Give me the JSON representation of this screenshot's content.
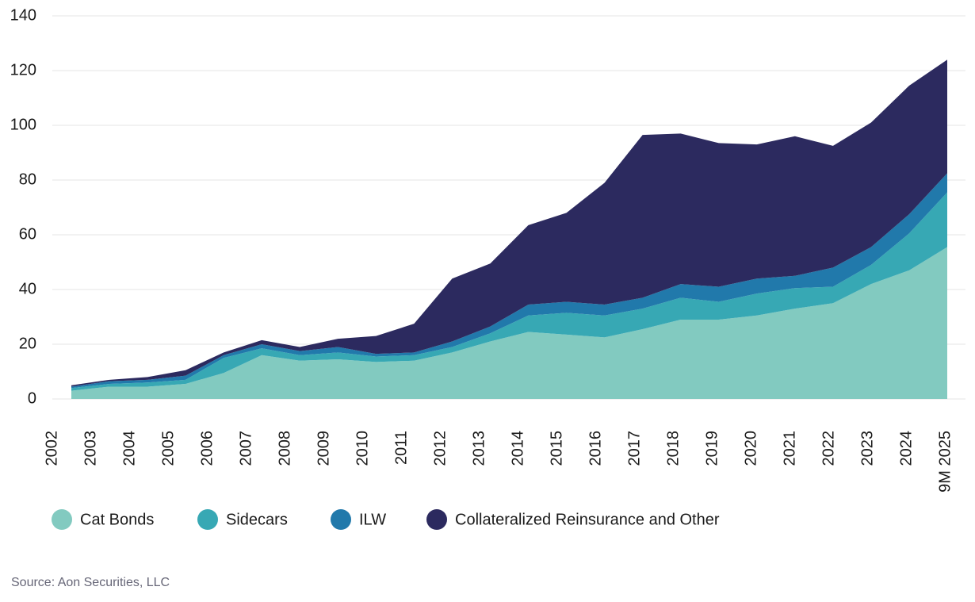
{
  "chart_data": {
    "type": "stacked_area",
    "categories": [
      "2002",
      "2003",
      "2004",
      "2005",
      "2006",
      "2007",
      "2008",
      "2009",
      "2010",
      "2011",
      "2012",
      "2013",
      "2014",
      "2015",
      "2016",
      "2017",
      "2018",
      "2019",
      "2020",
      "2021",
      "2022",
      "2023",
      "2024",
      "9M 2025"
    ],
    "series": [
      {
        "name": "Cat Bonds",
        "color": "#82cac0",
        "values": [
          3,
          4.5,
          4.5,
          5.5,
          9.5,
          16,
          14,
          14.5,
          13.5,
          14,
          17,
          21,
          24.5,
          23.5,
          22.5,
          25.5,
          29,
          29,
          30.5,
          33,
          35,
          42,
          47,
          55.5
        ]
      },
      {
        "name": "Sidecars",
        "color": "#37a8b4",
        "values": [
          1,
          1,
          1.5,
          1.5,
          5.5,
          2.5,
          2,
          2.5,
          2,
          2,
          2,
          3,
          6,
          8,
          8,
          7.5,
          8,
          6.5,
          8,
          7.5,
          6,
          7,
          13.5,
          20
        ]
      },
      {
        "name": "ILW",
        "color": "#2179ab",
        "values": [
          0.5,
          1,
          1,
          1.5,
          1,
          1.5,
          1.5,
          2,
          1,
          1,
          2,
          2.5,
          4,
          4,
          4,
          4,
          5,
          5.5,
          5.5,
          4.5,
          7,
          6.5,
          7,
          7
        ]
      },
      {
        "name": "Collateralized Reinsurance and Other",
        "color": "#2c2a5f",
        "values": [
          0.5,
          0.5,
          1,
          2,
          1,
          1.5,
          1.5,
          3,
          6.5,
          10.5,
          23,
          23,
          29,
          32.5,
          44.5,
          59.5,
          55,
          52.5,
          49,
          51,
          44.5,
          45.5,
          47,
          41.5
        ]
      }
    ],
    "ylim": [
      0,
      140
    ],
    "yticks": [
      0,
      20,
      40,
      60,
      80,
      100,
      120,
      140
    ],
    "grid": true,
    "legend": "bottom",
    "source": "Source: Aon Securities, LLC"
  }
}
